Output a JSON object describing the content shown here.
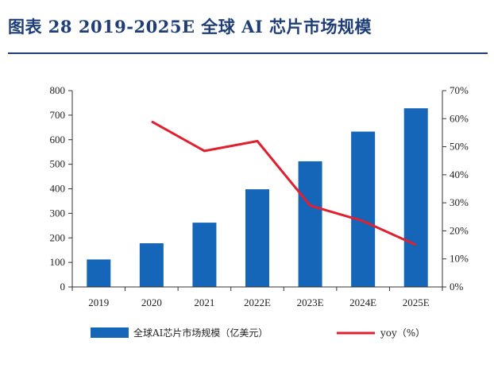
{
  "title": "图表 28   2019-2025E 全球 AI 芯片市场规模",
  "chart_data": {
    "type": "bar",
    "categories": [
      "2019",
      "2020",
      "2021",
      "2022E",
      "2023E",
      "2024E",
      "2025E"
    ],
    "series": [
      {
        "name": "全球AI芯片市场规模（亿美元）",
        "type": "bar",
        "axis": "left",
        "values": [
          112,
          178,
          262,
          398,
          512,
          633,
          728
        ],
        "color": "#1565b8"
      },
      {
        "name": "yoy（%）",
        "type": "line",
        "axis": "right",
        "values": [
          null,
          59,
          48.5,
          52,
          29,
          23.5,
          15
        ],
        "color": "#e0202e"
      }
    ],
    "y_left": {
      "min": 0,
      "max": 800,
      "step": 100,
      "tick_labels": [
        "0",
        "100",
        "200",
        "300",
        "400",
        "500",
        "600",
        "700",
        "800"
      ]
    },
    "y_right": {
      "min": 0,
      "max": 70,
      "step": 10,
      "tick_labels": [
        "0%",
        "10%",
        "20%",
        "30%",
        "40%",
        "50%",
        "60%",
        "70%"
      ]
    },
    "grid": false,
    "legend_position": "bottom"
  }
}
